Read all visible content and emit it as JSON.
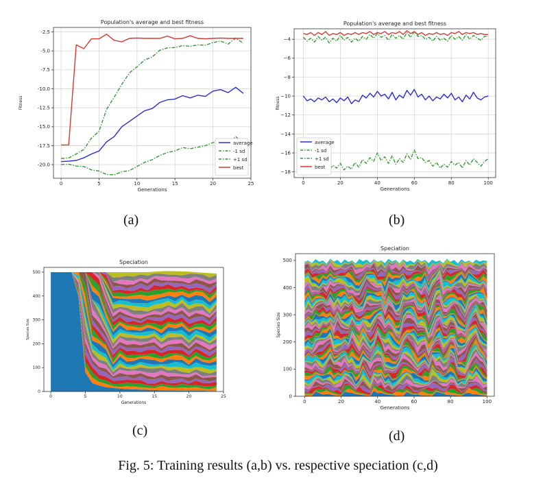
{
  "figure": {
    "caption": "Fig. 5: Training results (a,b) vs. respective speciation (c,d)",
    "labels": [
      "(a)",
      "(b)",
      "(c)",
      "(d)"
    ]
  },
  "chart_data": [
    {
      "type": "line",
      "title": "Population's average and best fitness",
      "xlabel": "Generations",
      "ylabel": "Fitness",
      "xlim": [
        -1,
        25
      ],
      "ylim": [
        -21.8,
        -1.9
      ],
      "xticks": [
        0,
        5,
        10,
        15,
        20,
        25
      ],
      "yticks": [
        -20.0,
        -17.5,
        -15.0,
        -12.5,
        -10.0,
        -7.5,
        -5.0,
        -2.5
      ],
      "ytick_labels": [
        "-20.0",
        "-17.5",
        "-15.0",
        "-12.5",
        "-10.0",
        "-7.5",
        "-5.0",
        "-2.5"
      ],
      "grid": true,
      "legend": "lower-right",
      "x": [
        0,
        1,
        2,
        3,
        4,
        5,
        6,
        7,
        8,
        9,
        10,
        11,
        12,
        13,
        14,
        15,
        16,
        17,
        18,
        19,
        20,
        21,
        22,
        23,
        24
      ],
      "series": [
        {
          "name": "average",
          "color": "#2b2bcf",
          "style": "solid",
          "values": [
            -19.6,
            -19.55,
            -19.45,
            -19.1,
            -18.6,
            -18.2,
            -17.0,
            -16.3,
            -15.0,
            -14.3,
            -13.6,
            -12.9,
            -12.6,
            -11.8,
            -11.45,
            -11.35,
            -10.9,
            -11.2,
            -10.85,
            -11.0,
            -10.3,
            -10.1,
            -10.5,
            -9.8,
            -10.6
          ]
        },
        {
          "name": "-1 sd",
          "color": "#2e9a2e",
          "style": "dashdot",
          "values": [
            -20.0,
            -19.95,
            -20.2,
            -20.25,
            -20.7,
            -20.85,
            -21.3,
            -21.35,
            -20.95,
            -20.8,
            -20.25,
            -19.7,
            -19.35,
            -18.8,
            -18.4,
            -18.2,
            -17.75,
            -17.9,
            -17.7,
            -17.5,
            -17.1,
            -16.9,
            -17.3,
            -16.3,
            -17.2
          ]
        },
        {
          "name": "+1 sd",
          "color": "#2e9a2e",
          "style": "dashdot",
          "values": [
            -19.2,
            -19.1,
            -18.6,
            -18.0,
            -16.5,
            -15.6,
            -12.7,
            -11.1,
            -9.4,
            -7.9,
            -7.1,
            -6.2,
            -5.8,
            -4.9,
            -4.6,
            -4.55,
            -4.3,
            -4.4,
            -4.2,
            -4.25,
            -3.9,
            -3.7,
            -4.1,
            -3.3,
            -4.0
          ]
        },
        {
          "name": "best",
          "color": "#d13a2f",
          "style": "solid",
          "values": [
            -17.4,
            -17.4,
            -4.2,
            -4.7,
            -3.4,
            -3.4,
            -2.8,
            -3.6,
            -3.8,
            -3.35,
            -3.3,
            -3.35,
            -3.35,
            -3.35,
            -3.05,
            -3.4,
            -3.35,
            -3.0,
            -3.35,
            -3.4,
            -3.35,
            -3.3,
            -3.35,
            -3.35,
            -3.35
          ]
        }
      ]
    },
    {
      "type": "line",
      "title": "Population's average and best fitness",
      "xlabel": "Generations",
      "ylabel": "fitness",
      "xlim": [
        -5,
        104
      ],
      "ylim": [
        -18.6,
        -2.9
      ],
      "xticks": [
        0,
        20,
        40,
        60,
        80,
        100
      ],
      "yticks": [
        -18,
        -16,
        -14,
        -12,
        -10,
        -8,
        -6,
        -4
      ],
      "ytick_labels": [
        "−18",
        "−16",
        "−14",
        "−12",
        "−10",
        "−8",
        "−6",
        "−4"
      ],
      "grid": true,
      "legend": "lower-left",
      "x": [
        0,
        2,
        4,
        6,
        8,
        10,
        12,
        14,
        16,
        18,
        20,
        22,
        24,
        26,
        28,
        30,
        32,
        34,
        36,
        38,
        40,
        42,
        44,
        46,
        48,
        50,
        52,
        54,
        56,
        58,
        60,
        62,
        64,
        66,
        68,
        70,
        72,
        74,
        76,
        78,
        80,
        82,
        84,
        86,
        88,
        90,
        92,
        94,
        96,
        98,
        100
      ],
      "series": [
        {
          "name": "average",
          "color": "#2b2bcf",
          "style": "solid",
          "values": [
            -10.0,
            -10.5,
            -10.3,
            -10.6,
            -10.2,
            -10.4,
            -10.1,
            -10.6,
            -10.3,
            -10.7,
            -10.2,
            -10.5,
            -10.1,
            -10.8,
            -10.4,
            -10.6,
            -9.9,
            -10.2,
            -9.7,
            -10.1,
            -9.5,
            -10.0,
            -9.8,
            -10.3,
            -9.6,
            -10.4,
            -9.9,
            -10.2,
            -9.4,
            -9.9,
            -9.3,
            -10.1,
            -9.8,
            -10.4,
            -10.0,
            -10.5,
            -10.1,
            -10.3,
            -9.8,
            -10.2,
            -9.7,
            -10.4,
            -10.1,
            -10.6,
            -9.9,
            -10.3,
            -9.6,
            -10.2,
            -10.4,
            -10.1,
            -10.0
          ]
        },
        {
          "name": "-1 sd",
          "color": "#2e9a2e",
          "style": "dashdot",
          "values": [
            -16.6,
            -17.6,
            -17.2,
            -17.8,
            -17.0,
            -17.5,
            -16.8,
            -17.9,
            -17.3,
            -17.6,
            -17.1,
            -17.8,
            -17.4,
            -17.7,
            -17.0,
            -17.5,
            -16.7,
            -17.1,
            -16.5,
            -16.9,
            -16.0,
            -16.8,
            -16.4,
            -17.1,
            -16.3,
            -17.2,
            -16.6,
            -17.0,
            -16.1,
            -16.7,
            -15.7,
            -16.6,
            -16.5,
            -17.0,
            -16.8,
            -17.4,
            -17.0,
            -17.6,
            -17.2,
            -17.5,
            -16.9,
            -17.3,
            -17.0,
            -17.6,
            -16.8,
            -17.3,
            -16.6,
            -17.0,
            -17.4,
            -16.9,
            -16.6
          ]
        },
        {
          "name": "+1 sd",
          "color": "#2e9a2e",
          "style": "dashdot",
          "values": [
            -3.8,
            -4.2,
            -3.9,
            -4.3,
            -3.7,
            -4.1,
            -3.8,
            -4.4,
            -3.9,
            -4.2,
            -3.6,
            -4.1,
            -3.8,
            -4.3,
            -3.9,
            -4.2,
            -3.7,
            -4.0,
            -3.5,
            -3.9,
            -3.4,
            -3.8,
            -3.6,
            -4.1,
            -3.5,
            -3.9,
            -3.6,
            -4.0,
            -3.3,
            -3.8,
            -3.2,
            -3.7,
            -3.6,
            -4.0,
            -3.8,
            -4.2,
            -3.7,
            -4.1,
            -3.9,
            -4.2,
            -3.6,
            -4.0,
            -3.7,
            -4.1,
            -3.5,
            -4.0,
            -3.6,
            -3.9,
            -4.1,
            -3.7,
            -3.7
          ]
        },
        {
          "name": "best",
          "color": "#d13a2f",
          "style": "solid",
          "values": [
            -3.4,
            -3.5,
            -3.3,
            -3.6,
            -3.3,
            -3.5,
            -3.2,
            -3.6,
            -3.4,
            -3.5,
            -3.3,
            -3.6,
            -3.4,
            -3.5,
            -3.3,
            -3.5,
            -3.3,
            -3.4,
            -3.2,
            -3.5,
            -3.3,
            -3.4,
            -3.2,
            -3.5,
            -3.3,
            -3.4,
            -3.2,
            -3.5,
            -3.1,
            -3.4,
            -3.2,
            -3.5,
            -3.3,
            -3.6,
            -3.4,
            -3.5,
            -3.3,
            -3.5,
            -3.4,
            -3.6,
            -3.3,
            -3.4,
            -3.2,
            -3.5,
            -3.3,
            -3.4,
            -3.3,
            -3.5,
            -3.4,
            -3.5,
            -3.5
          ]
        }
      ]
    },
    {
      "type": "area",
      "title": "Speciation",
      "xlabel": "Generations",
      "ylabel": "Species Size",
      "xlim": [
        -1,
        25
      ],
      "ylim": [
        0,
        520
      ],
      "xticks": [
        0,
        5,
        10,
        15,
        20,
        25
      ],
      "yticks": [
        0,
        100,
        200,
        300,
        400,
        500
      ],
      "grid": false,
      "stacked": true,
      "x": [
        0,
        1,
        2,
        3,
        4,
        5,
        6,
        7,
        8,
        9,
        10,
        11,
        12,
        13,
        14,
        15,
        16,
        17,
        18,
        19,
        20,
        21,
        22,
        23,
        24
      ],
      "total": [
        500,
        500,
        500,
        500,
        500,
        500,
        500,
        500,
        500,
        500,
        500,
        500,
        500,
        500,
        500,
        502,
        504,
        505,
        504,
        503,
        502,
        500,
        498,
        496,
        494
      ],
      "dominant_species": [
        500,
        500,
        500,
        500,
        400,
        80,
        35,
        25,
        18,
        15,
        12,
        10,
        9,
        8,
        7,
        6,
        5,
        5,
        4,
        4,
        3,
        3,
        3,
        2,
        2
      ],
      "palette": [
        "#1f77b4",
        "#ff7f0e",
        "#2ca02c",
        "#d62728",
        "#9467bd",
        "#8c564b",
        "#e377c2",
        "#7f7f7f",
        "#bcbd22",
        "#17becf"
      ]
    },
    {
      "type": "area",
      "title": "Speciation",
      "xlabel": "Generations",
      "ylabel": "Species Size",
      "xlim": [
        -5,
        104
      ],
      "ylim": [
        0,
        525
      ],
      "xticks": [
        0,
        20,
        40,
        60,
        80,
        100
      ],
      "yticks": [
        0,
        100,
        200,
        300,
        400,
        500
      ],
      "grid": false,
      "stacked": true,
      "x": [
        0,
        2,
        4,
        6,
        8,
        10,
        12,
        14,
        16,
        18,
        20,
        22,
        24,
        26,
        28,
        30,
        32,
        34,
        36,
        38,
        40,
        42,
        44,
        46,
        48,
        50,
        52,
        54,
        56,
        58,
        60,
        62,
        64,
        66,
        68,
        70,
        72,
        74,
        76,
        78,
        80,
        82,
        84,
        86,
        88,
        90,
        92,
        94,
        96,
        98,
        100
      ],
      "total": [
        495,
        500,
        490,
        505,
        495,
        500,
        488,
        506,
        496,
        502,
        490,
        504,
        494,
        500,
        489,
        505,
        497,
        503,
        491,
        504,
        495,
        500,
        490,
        506,
        496,
        502,
        489,
        504,
        494,
        500,
        491,
        505,
        496,
        502,
        490,
        503,
        495,
        500,
        490,
        506,
        495,
        502,
        489,
        504,
        494,
        500,
        491,
        503,
        496,
        500,
        498
      ],
      "palette": [
        "#1f77b4",
        "#ff7f0e",
        "#2ca02c",
        "#d62728",
        "#9467bd",
        "#8c564b",
        "#e377c2",
        "#7f7f7f",
        "#bcbd22",
        "#17becf"
      ]
    }
  ]
}
